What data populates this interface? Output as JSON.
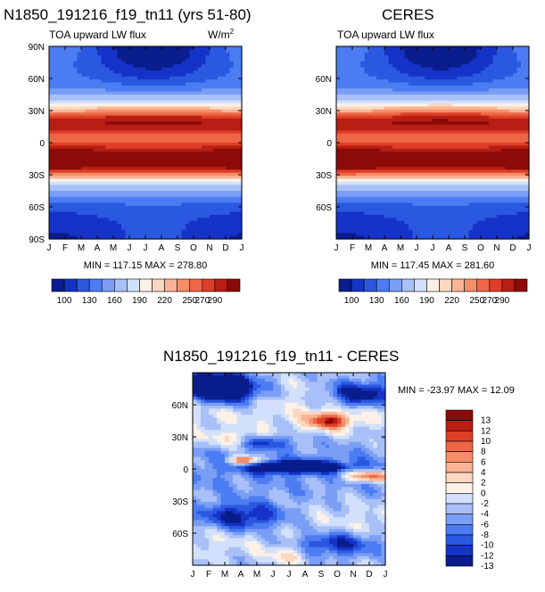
{
  "figure_titles": {
    "left": "N1850_191216_f19_tn11 (yrs 51-80)",
    "right": "CERES",
    "diff": "N1850_191216_f19_tn11 - CERES"
  },
  "chart_data": [
    {
      "type": "heatmap",
      "name": "model",
      "subtitle": "TOA upward LW flux",
      "units": "W/m",
      "units_sup": "2",
      "x_ticks": [
        "J",
        "F",
        "M",
        "A",
        "M",
        "J",
        "J",
        "A",
        "S",
        "O",
        "N",
        "D",
        "J"
      ],
      "y_ticks": [
        "90N",
        "60N",
        "30N",
        "0",
        "30S",
        "60S",
        "90S"
      ],
      "y_range": [
        -90,
        90
      ],
      "stats": "MIN = 117.15 MAX = 278.80",
      "min": 117.15,
      "max": 278.8,
      "colorbar_labels": [
        "100",
        "130",
        "160",
        "190",
        "220",
        "250",
        "270",
        "290"
      ]
    },
    {
      "type": "heatmap",
      "name": "ceres",
      "subtitle": "TOA upward LW flux",
      "x_ticks": [
        "J",
        "F",
        "M",
        "A",
        "M",
        "J",
        "J",
        "A",
        "S",
        "O",
        "N",
        "D",
        "J"
      ],
      "y_ticks": [
        "60N",
        "30N",
        "0",
        "30S",
        "60S"
      ],
      "y_range": [
        -90,
        90
      ],
      "stats": "MIN = 117.45 MAX = 281.60",
      "min": 117.45,
      "max": 281.6,
      "colorbar_labels": [
        "100",
        "130",
        "160",
        "190",
        "220",
        "250",
        "270",
        "290"
      ]
    },
    {
      "type": "heatmap",
      "name": "difference",
      "x_ticks": [
        "J",
        "F",
        "M",
        "A",
        "M",
        "J",
        "J",
        "A",
        "S",
        "O",
        "N",
        "D",
        "J"
      ],
      "y_ticks": [
        "60N",
        "30N",
        "0",
        "30S",
        "60S"
      ],
      "y_range": [
        -90,
        90
      ],
      "stats": "MIN = -23.97 MAX =  12.09",
      "min": -23.97,
      "max": 12.09,
      "colorbar_labels": [
        "13",
        "12",
        "10",
        "8",
        "6",
        "4",
        "2",
        "0",
        "-2",
        "-4",
        "-6",
        "-8",
        "-10",
        "-12",
        "-13"
      ]
    }
  ],
  "colors": {
    "flux_scale": [
      "#0a1d8c",
      "#1533c7",
      "#2a58e0",
      "#4c7cf2",
      "#7a9ef5",
      "#a8c0f7",
      "#d2e0fb",
      "#fdf1e6",
      "#fbd6c0",
      "#f8b494",
      "#f58e68",
      "#ee6646",
      "#dd3f27",
      "#b81e13",
      "#8c0a09"
    ],
    "diff_scale": [
      "#8c0a09",
      "#b81e13",
      "#dd3f27",
      "#ee6646",
      "#f58e68",
      "#f8b494",
      "#fbd6c0",
      "#fdf1e6",
      "#d2e0fb",
      "#a8c0f7",
      "#7a9ef5",
      "#4c7cf2",
      "#2a58e0",
      "#1533c7",
      "#0a1d8c"
    ]
  }
}
